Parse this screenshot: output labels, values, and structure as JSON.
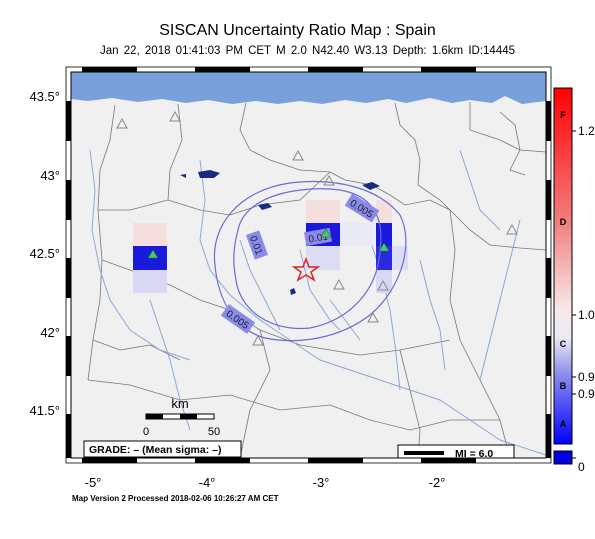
{
  "title": "SISCAN Uncertainty Ratio Map : Spain",
  "subtitle": "Jan 22, 2018 01:41:03 PM CET   M 2.0   N42.40 W3.13   Depth: 1.6km   ID:14445",
  "footer": "Map Version 2 Processed 2018-02-06 10:26:27 AM CET",
  "lat_ticks": [
    "43.5°",
    "43°",
    "42.5°",
    "42°",
    "41.5°"
  ],
  "lon_ticks": [
    "-5°",
    "-4°",
    "-3°",
    "-2°"
  ],
  "contour_labels": [
    "0.005",
    "0.01",
    "0.01",
    "0.005"
  ],
  "scale_bar": {
    "title": "km",
    "start": "0",
    "end": "50"
  },
  "grade_box": "GRADE: – (Mean sigma: –)",
  "mi_legend": "MI = 6.0",
  "colorbar": {
    "grades": [
      "F",
      "D",
      "C",
      "B",
      "A"
    ],
    "values": [
      "1.2",
      "1.0",
      "0.9",
      "0.9",
      "0"
    ]
  },
  "colors": {
    "sea": "#7aa0dc",
    "land": "#f0f0f0",
    "river": "#8aa8d8",
    "contour": "#6a6ad8",
    "epicenter": "#e02020",
    "station": "#33cc55"
  }
}
